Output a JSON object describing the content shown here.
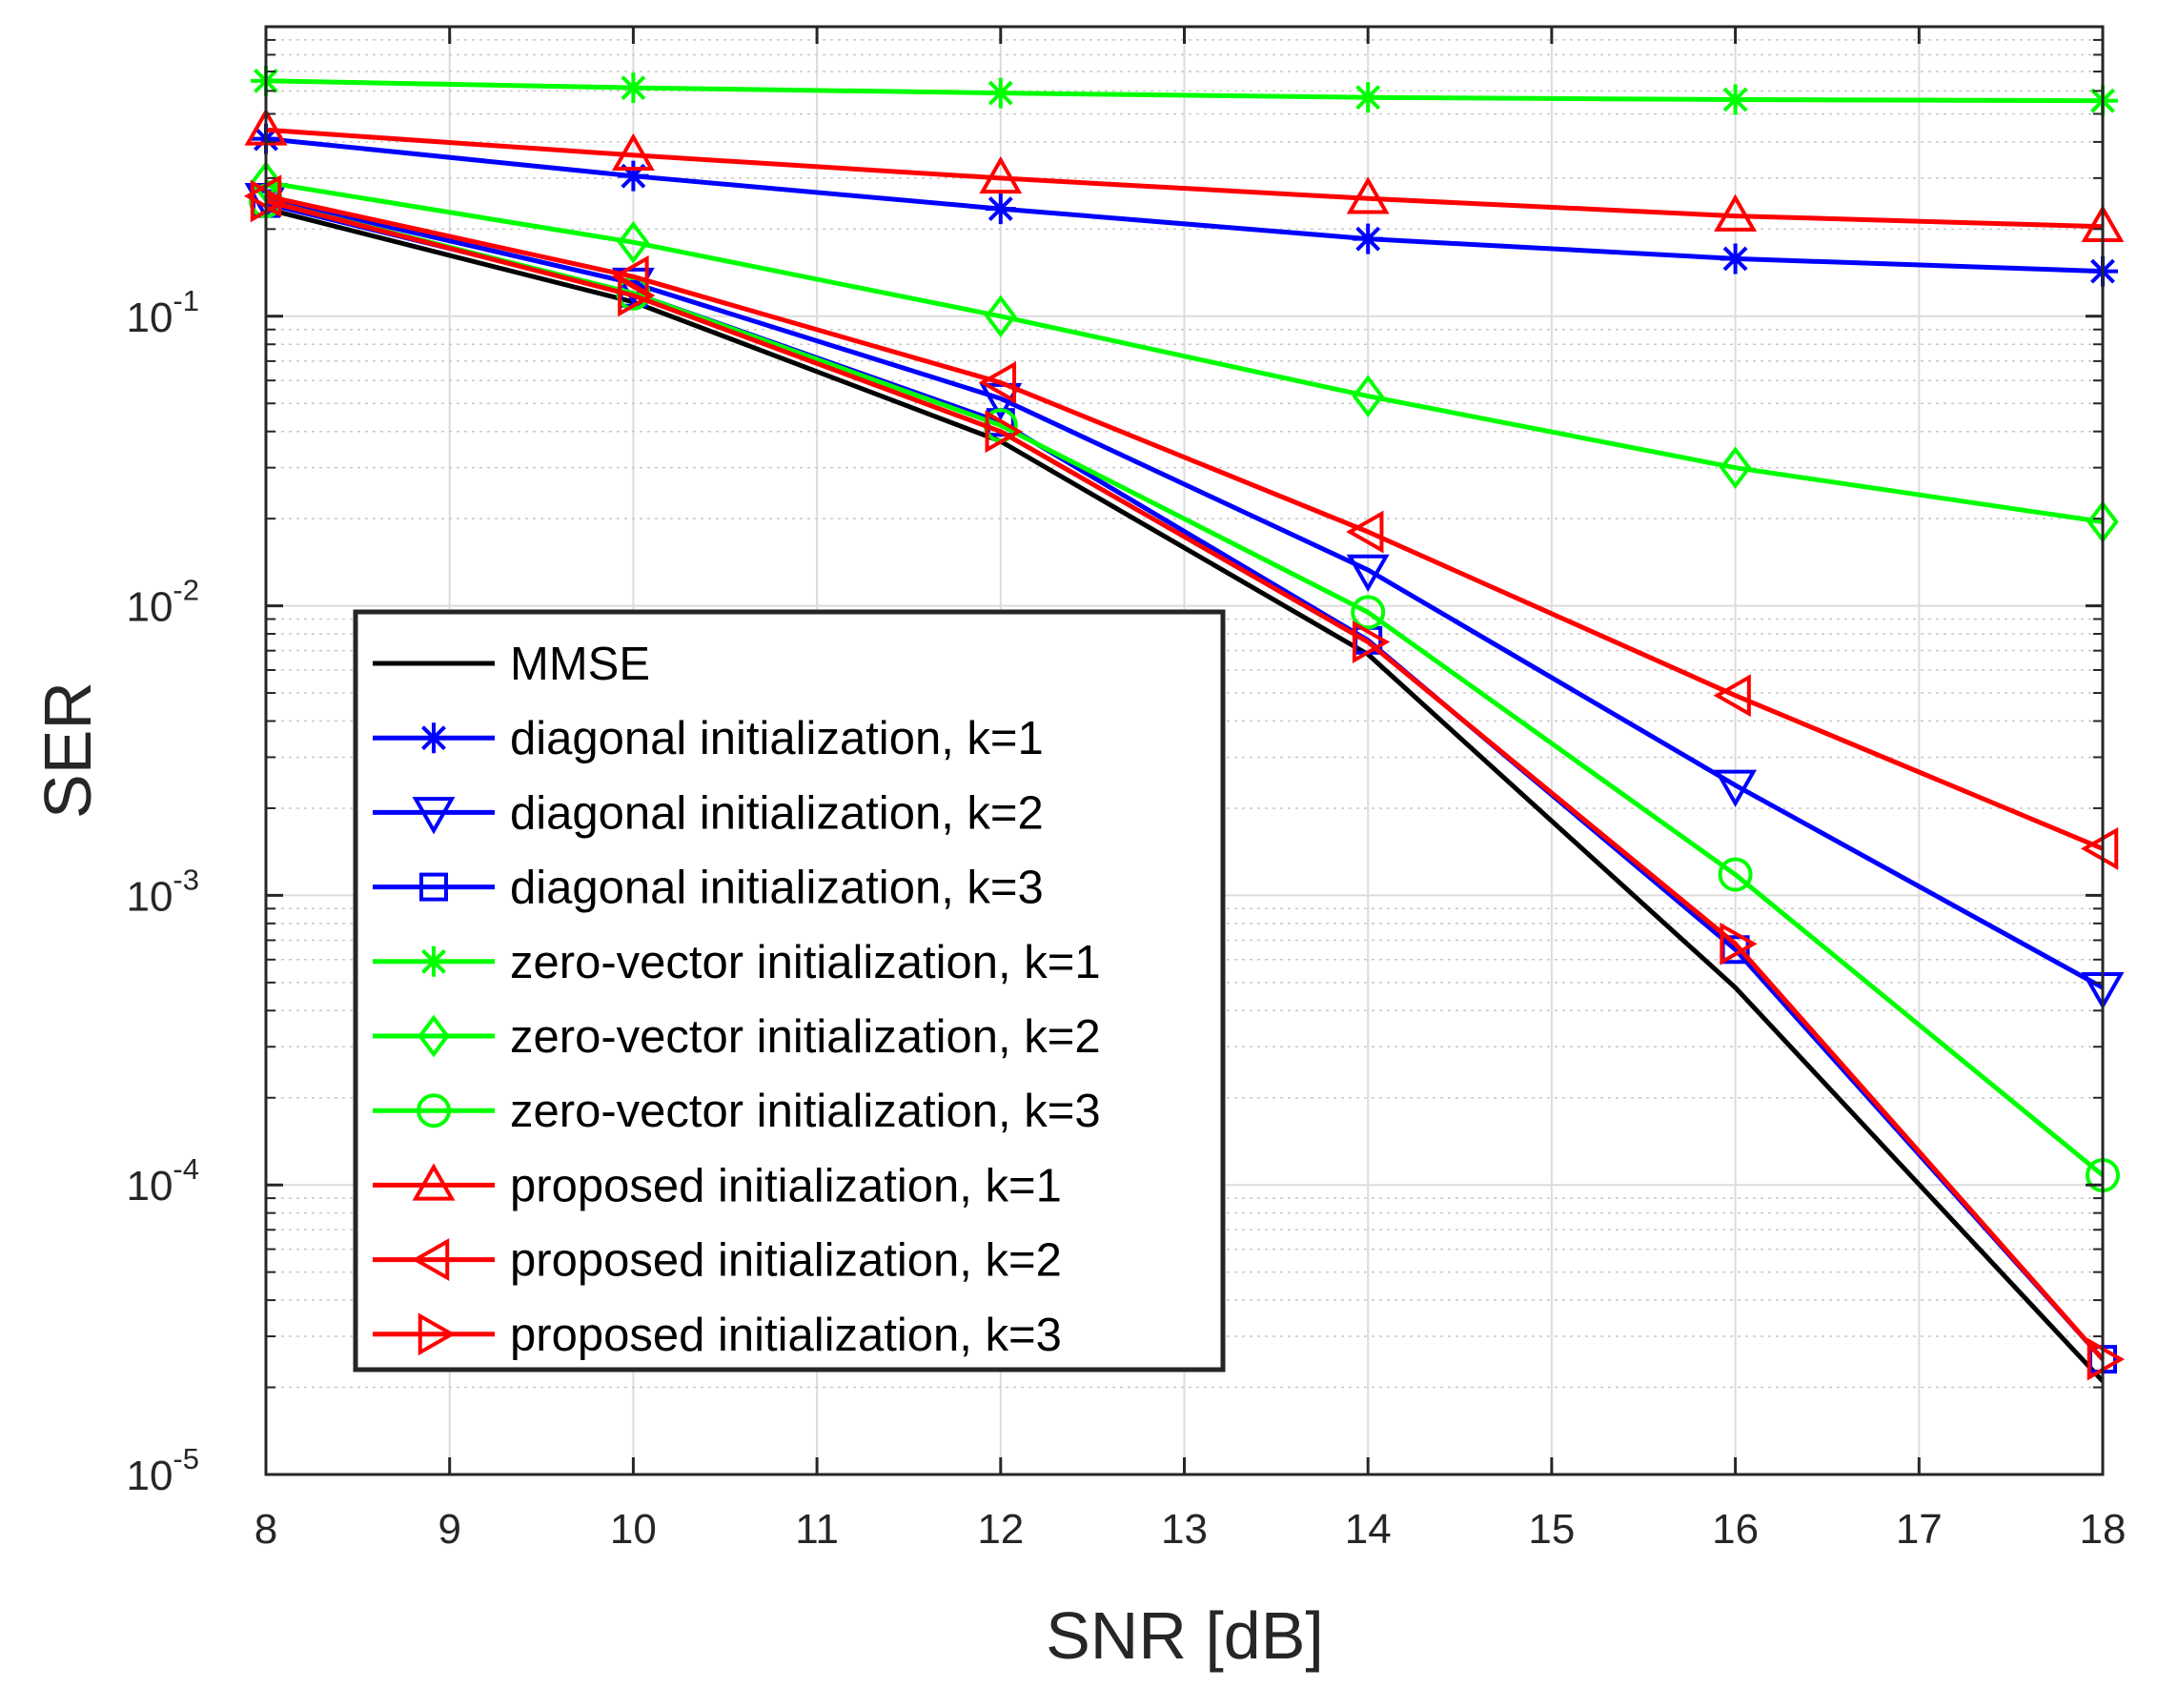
{
  "chart_data": {
    "type": "line",
    "title": "",
    "xlabel": "SNR [dB]",
    "ylabel": "SER",
    "xscale": "linear",
    "yscale": "log",
    "xlim": [
      8,
      18
    ],
    "ylim": [
      1e-05,
      1
    ],
    "grid": true,
    "xticks": [
      8,
      9,
      10,
      11,
      12,
      13,
      14,
      15,
      16,
      17,
      18
    ],
    "yticks": [
      {
        "value": 1e-05,
        "base": "10",
        "exp": "-5"
      },
      {
        "value": 0.0001,
        "base": "10",
        "exp": "-4"
      },
      {
        "value": 0.001,
        "base": "10",
        "exp": "-3"
      },
      {
        "value": 0.01,
        "base": "10",
        "exp": "-2"
      },
      {
        "value": 0.1,
        "base": "10",
        "exp": "-1"
      }
    ],
    "legend_location": "bottom-left",
    "x": [
      8,
      10,
      12,
      14,
      16,
      18
    ],
    "series": [
      {
        "name": "MMSE",
        "color": "#000000",
        "marker": "none",
        "values": [
          0.235,
          0.112,
          0.037,
          0.0068,
          0.00048,
          2.1e-05
        ]
      },
      {
        "name": "diagonal initialization, k=1",
        "color": "#0000FF",
        "marker": "asterisk",
        "values": [
          0.41,
          0.305,
          0.235,
          0.185,
          0.158,
          0.143
        ]
      },
      {
        "name": "diagonal initialization, k=2",
        "color": "#0000FF",
        "marker": "triangle-down",
        "values": [
          0.255,
          0.13,
          0.052,
          0.0133,
          0.0024,
          0.00048
        ]
      },
      {
        "name": "diagonal initialization, k=3",
        "color": "#0000FF",
        "marker": "square",
        "values": [
          0.245,
          0.12,
          0.043,
          0.0076,
          0.00065,
          2.5e-05
        ]
      },
      {
        "name": "zero-vector initialization, k=1",
        "color": "#00FF00",
        "marker": "asterisk",
        "values": [
          0.65,
          0.615,
          0.59,
          0.57,
          0.56,
          0.555
        ]
      },
      {
        "name": "zero-vector initialization, k=2",
        "color": "#00FF00",
        "marker": "diamond",
        "values": [
          0.29,
          0.18,
          0.1,
          0.053,
          0.03,
          0.0195
        ]
      },
      {
        "name": "zero-vector initialization, k=3",
        "color": "#00FF00",
        "marker": "circle",
        "values": [
          0.25,
          0.12,
          0.042,
          0.0095,
          0.00118,
          0.000108
        ]
      },
      {
        "name": "proposed initialization, k=1",
        "color": "#FF0000",
        "marker": "triangle-up",
        "values": [
          0.44,
          0.36,
          0.3,
          0.255,
          0.222,
          0.204
        ]
      },
      {
        "name": "proposed initialization, k=2",
        "color": "#FF0000",
        "marker": "triangle-left",
        "values": [
          0.26,
          0.137,
          0.059,
          0.018,
          0.0049,
          0.00145
        ]
      },
      {
        "name": "proposed initialization, k=3",
        "color": "#FF0000",
        "marker": "triangle-right",
        "values": [
          0.25,
          0.118,
          0.04,
          0.0075,
          0.00068,
          2.5e-05
        ]
      }
    ]
  }
}
